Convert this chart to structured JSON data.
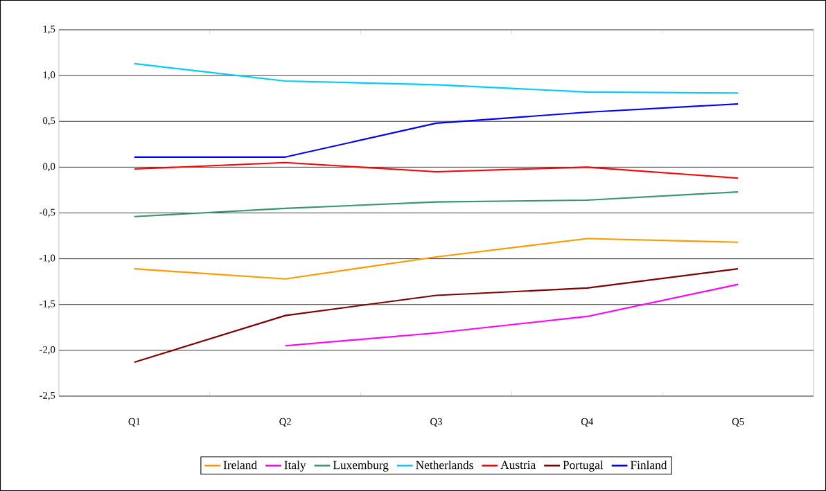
{
  "chart_data": {
    "type": "line",
    "categories": [
      "Q1",
      "Q2",
      "Q3",
      "Q4",
      "Q5"
    ],
    "series": [
      {
        "name": "Ireland",
        "color": "#ff9900",
        "values": [
          -1.11,
          -1.22,
          -0.98,
          -0.78,
          -0.82
        ]
      },
      {
        "name": "Italy",
        "color": "#ff00ff",
        "values": [
          null,
          -1.95,
          -1.81,
          -1.63,
          -1.28
        ]
      },
      {
        "name": "Luxemburg",
        "color": "#339966",
        "values": [
          -0.54,
          -0.45,
          -0.38,
          -0.36,
          -0.27
        ]
      },
      {
        "name": "Netherlands",
        "color": "#00ccff",
        "values": [
          1.13,
          0.94,
          0.9,
          0.82,
          0.81
        ]
      },
      {
        "name": "Austria",
        "color": "#ff0000",
        "values": [
          -0.02,
          0.05,
          -0.05,
          0.0,
          -0.12
        ]
      },
      {
        "name": "Portugal",
        "color": "#800000",
        "values": [
          -2.13,
          -1.62,
          -1.4,
          -1.32,
          -1.11
        ]
      },
      {
        "name": "Finland",
        "color": "#0000ff",
        "values": [
          0.11,
          0.11,
          0.48,
          0.6,
          0.69
        ]
      }
    ],
    "ylim": [
      -2.5,
      1.5
    ],
    "yticks": [
      {
        "value": -2.5,
        "label": "-2,5"
      },
      {
        "value": -2.0,
        "label": "-2,0"
      },
      {
        "value": -1.5,
        "label": "-1,5"
      },
      {
        "value": -1.0,
        "label": "-1,0"
      },
      {
        "value": -0.5,
        "label": "-0,5"
      },
      {
        "value": 0.0,
        "label": "0,0"
      },
      {
        "value": 0.5,
        "label": "0,5"
      },
      {
        "value": 1.0,
        "label": "1,0"
      },
      {
        "value": 1.5,
        "label": "1,5"
      }
    ],
    "grid": "y",
    "legend": "bottom",
    "marker": "none",
    "line_style": "solid"
  }
}
